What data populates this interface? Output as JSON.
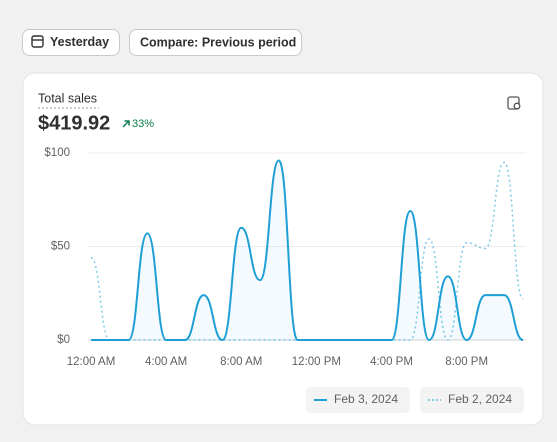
{
  "buttons": [
    "Yesterday",
    "Compare: Previous period"
  ],
  "card": {
    "label": "Total sales",
    "total": "$419.92",
    "change": "33%"
  },
  "chart_data": {
    "type": "line",
    "categories": [
      "12:00 AM",
      null,
      null,
      null,
      "4:00 AM",
      null,
      null,
      null,
      "8:00 AM",
      null,
      null,
      null,
      "12:00 PM",
      null,
      null,
      null,
      "4:00 PM",
      null,
      null,
      null,
      "8:00 PM",
      null,
      null,
      null
    ],
    "series": [
      {
        "name": "Feb 3, 2024",
        "color": "#1f9fd6",
        "style": "solid",
        "values": [
          0,
          0,
          0,
          57,
          0,
          0,
          24,
          0,
          60,
          32,
          96,
          0,
          0,
          0,
          0,
          0,
          0,
          69,
          0,
          34,
          0,
          24,
          24,
          0
        ]
      },
      {
        "name": "Feb 2, 2024",
        "color": "#7cc9ea",
        "style": "dotted",
        "values": [
          44,
          0,
          0,
          0,
          0,
          0,
          0,
          0,
          0,
          0,
          0,
          0,
          0,
          0,
          0,
          0,
          0,
          0,
          54,
          0,
          52,
          49,
          95,
          22
        ]
      }
    ],
    "ylim": [
      0,
      100
    ],
    "yticks": [
      {
        "value": 0,
        "label": "$0"
      },
      {
        "value": 50,
        "label": "$50"
      },
      {
        "value": 100,
        "label": "$100"
      }
    ],
    "grid": true
  }
}
